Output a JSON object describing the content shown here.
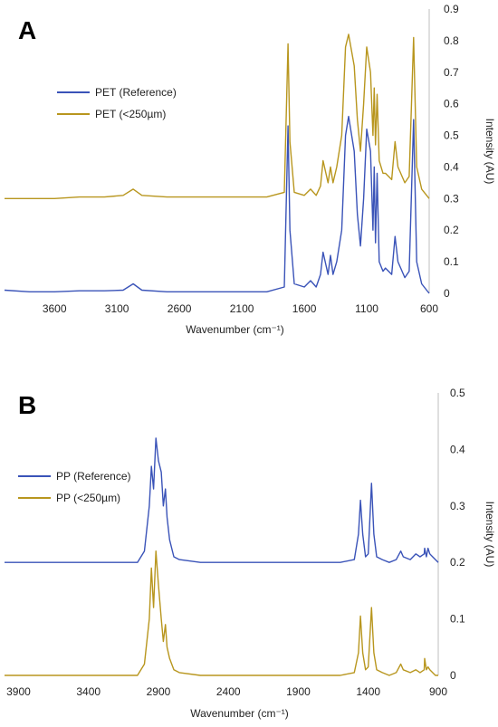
{
  "panels": [
    {
      "letter": "A"
    },
    {
      "letter": "B"
    }
  ],
  "chart_data": [
    {
      "type": "line",
      "panel": "A",
      "xlabel": "Wavenumber (cm⁻¹)",
      "ylabel": "Intensity (AU)",
      "xlim": [
        4000,
        600
      ],
      "ylim": [
        0,
        0.9
      ],
      "x_reversed": true,
      "x_ticks": [
        "3600",
        "3100",
        "2600",
        "2100",
        "1600",
        "1100",
        "600"
      ],
      "y_ticks": [
        "0",
        "0.1",
        "0.2",
        "0.3",
        "0.4",
        "0.5",
        "0.6",
        "0.7",
        "0.8",
        "0.9"
      ],
      "grid": false,
      "legend_position": "top-left",
      "series": [
        {
          "name": "PET (Reference)",
          "color": "#3a53b8",
          "x": [
            4000,
            3800,
            3600,
            3400,
            3200,
            3050,
            2970,
            2900,
            2700,
            2400,
            2100,
            1900,
            1760,
            1730,
            1715,
            1680,
            1600,
            1550,
            1505,
            1470,
            1450,
            1410,
            1390,
            1370,
            1340,
            1300,
            1270,
            1245,
            1200,
            1175,
            1150,
            1125,
            1100,
            1070,
            1050,
            1040,
            1030,
            1017,
            1000,
            970,
            950,
            900,
            873,
            850,
            795,
            760,
            725,
            700,
            660,
            620,
            600
          ],
          "y": [
            0.01,
            0.005,
            0.005,
            0.008,
            0.008,
            0.01,
            0.03,
            0.01,
            0.005,
            0.005,
            0.005,
            0.005,
            0.02,
            0.53,
            0.2,
            0.03,
            0.02,
            0.04,
            0.02,
            0.06,
            0.13,
            0.06,
            0.12,
            0.06,
            0.1,
            0.2,
            0.5,
            0.56,
            0.45,
            0.25,
            0.15,
            0.3,
            0.52,
            0.45,
            0.2,
            0.4,
            0.16,
            0.38,
            0.1,
            0.07,
            0.08,
            0.06,
            0.18,
            0.1,
            0.05,
            0.07,
            0.55,
            0.1,
            0.03,
            0.01,
            0.0
          ]
        },
        {
          "name": "PET (<250µm)",
          "color": "#b8961e",
          "x": [
            4000,
            3800,
            3600,
            3400,
            3200,
            3050,
            2970,
            2900,
            2700,
            2400,
            2100,
            1900,
            1760,
            1730,
            1715,
            1680,
            1600,
            1550,
            1505,
            1470,
            1450,
            1410,
            1390,
            1370,
            1340,
            1300,
            1270,
            1245,
            1200,
            1175,
            1150,
            1125,
            1100,
            1070,
            1050,
            1040,
            1030,
            1017,
            1000,
            970,
            950,
            900,
            873,
            850,
            795,
            760,
            725,
            700,
            660,
            620,
            600
          ],
          "y": [
            0.3,
            0.3,
            0.3,
            0.305,
            0.305,
            0.31,
            0.33,
            0.31,
            0.305,
            0.305,
            0.305,
            0.305,
            0.32,
            0.79,
            0.48,
            0.32,
            0.31,
            0.33,
            0.31,
            0.34,
            0.42,
            0.35,
            0.4,
            0.35,
            0.4,
            0.5,
            0.78,
            0.82,
            0.72,
            0.55,
            0.45,
            0.6,
            0.78,
            0.7,
            0.5,
            0.65,
            0.47,
            0.63,
            0.42,
            0.38,
            0.38,
            0.36,
            0.48,
            0.4,
            0.35,
            0.37,
            0.81,
            0.4,
            0.33,
            0.31,
            0.3
          ]
        }
      ]
    },
    {
      "type": "line",
      "panel": "B",
      "xlabel": "Wavenumber (cm⁻¹)",
      "ylabel": "Intensity (AU)",
      "xlim": [
        4000,
        900
      ],
      "ylim": [
        0,
        0.5
      ],
      "x_reversed": true,
      "x_ticks": [
        "3900",
        "3400",
        "2900",
        "2400",
        "1900",
        "1400",
        "900"
      ],
      "y_ticks": [
        "0",
        "0.1",
        "0.2",
        "0.3",
        "0.4",
        "0.5"
      ],
      "grid": false,
      "legend_position": "top-left",
      "series": [
        {
          "name": "PP (Reference)",
          "color": "#3a53b8",
          "x": [
            4000,
            3600,
            3200,
            3050,
            3000,
            2965,
            2950,
            2935,
            2918,
            2900,
            2880,
            2865,
            2850,
            2838,
            2820,
            2790,
            2750,
            2600,
            2400,
            2200,
            2000,
            1800,
            1600,
            1500,
            1470,
            1456,
            1440,
            1420,
            1400,
            1377,
            1360,
            1340,
            1300,
            1250,
            1200,
            1168,
            1150,
            1100,
            1060,
            1030,
            1000,
            997,
            985,
            973,
            960,
            940,
            920,
            900
          ],
          "y": [
            0.2,
            0.2,
            0.2,
            0.2,
            0.22,
            0.3,
            0.37,
            0.33,
            0.42,
            0.38,
            0.36,
            0.3,
            0.33,
            0.28,
            0.24,
            0.21,
            0.205,
            0.2,
            0.2,
            0.2,
            0.2,
            0.2,
            0.2,
            0.205,
            0.25,
            0.31,
            0.25,
            0.21,
            0.215,
            0.34,
            0.25,
            0.21,
            0.205,
            0.2,
            0.205,
            0.22,
            0.21,
            0.205,
            0.215,
            0.21,
            0.215,
            0.225,
            0.21,
            0.225,
            0.215,
            0.21,
            0.205,
            0.2
          ]
        },
        {
          "name": "PP (<250µm)",
          "color": "#b8961e",
          "x": [
            4000,
            3600,
            3200,
            3050,
            3000,
            2965,
            2950,
            2935,
            2918,
            2900,
            2880,
            2865,
            2850,
            2838,
            2820,
            2790,
            2750,
            2600,
            2400,
            2200,
            2000,
            1800,
            1600,
            1500,
            1470,
            1456,
            1440,
            1420,
            1400,
            1377,
            1360,
            1340,
            1300,
            1250,
            1200,
            1168,
            1150,
            1100,
            1060,
            1030,
            1000,
            997,
            985,
            973,
            960,
            940,
            920,
            900
          ],
          "y": [
            0.0,
            0.0,
            0.0,
            0.0,
            0.02,
            0.1,
            0.19,
            0.12,
            0.22,
            0.16,
            0.1,
            0.06,
            0.09,
            0.05,
            0.03,
            0.01,
            0.005,
            0.0,
            0.0,
            0.0,
            0.0,
            0.0,
            0.0,
            0.005,
            0.04,
            0.105,
            0.04,
            0.01,
            0.015,
            0.12,
            0.04,
            0.01,
            0.005,
            0.0,
            0.005,
            0.02,
            0.01,
            0.005,
            0.01,
            0.005,
            0.01,
            0.03,
            0.01,
            0.015,
            0.01,
            0.005,
            0.0,
            0.0
          ]
        }
      ]
    }
  ]
}
